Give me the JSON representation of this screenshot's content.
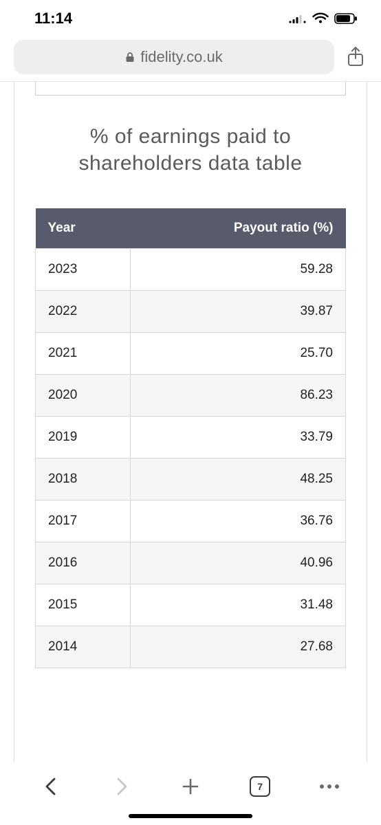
{
  "status": {
    "time": "11:14"
  },
  "browser": {
    "domain": "fidelity.co.uk",
    "tab_count": "7"
  },
  "content": {
    "title": "% of earnings paid to shareholders data table",
    "table": {
      "header_bg": "#575b6c",
      "header_fg": "#ffffff",
      "row_alt_bg": "#f6f6f6",
      "border_color": "#d7d7d7",
      "columns": [
        "Year",
        "Payout ratio (%)"
      ],
      "rows": [
        [
          "2023",
          "59.28"
        ],
        [
          "2022",
          "39.87"
        ],
        [
          "2021",
          "25.70"
        ],
        [
          "2020",
          "86.23"
        ],
        [
          "2019",
          "33.79"
        ],
        [
          "2018",
          "48.25"
        ],
        [
          "2017",
          "36.76"
        ],
        [
          "2016",
          "40.96"
        ],
        [
          "2015",
          "31.48"
        ],
        [
          "2014",
          "27.68"
        ]
      ]
    }
  }
}
